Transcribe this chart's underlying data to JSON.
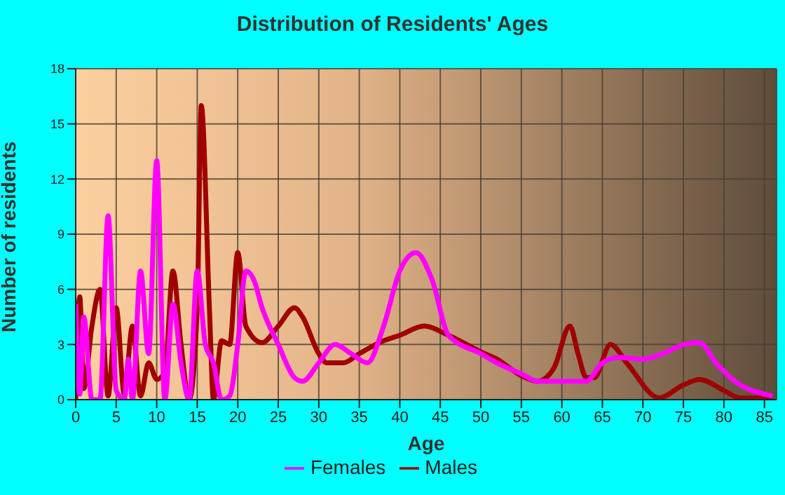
{
  "chart_data": {
    "type": "line",
    "title": "Distribution of Residents' Ages",
    "xlabel": "Age",
    "ylabel": "Number of residents",
    "xlim": [
      0,
      86.5
    ],
    "xticks": [
      0,
      5,
      10,
      15,
      20,
      25,
      30,
      35,
      40,
      45,
      50,
      55,
      60,
      65,
      70,
      75,
      80,
      85
    ],
    "ylim": [
      0,
      18
    ],
    "yticks": [
      0,
      3,
      6,
      9,
      12,
      15,
      18
    ],
    "grid": true,
    "legend": "bottom",
    "marker": "none",
    "line_style": "solid",
    "series": [
      {
        "name": "Males",
        "color": "#a00000",
        "x": [
          0,
          0.5,
          1,
          2,
          3,
          4,
          5,
          6,
          7,
          8,
          9,
          10,
          11,
          12,
          13,
          14,
          15,
          15.5,
          16.5,
          17,
          18,
          19,
          20,
          21,
          23,
          25,
          27,
          28,
          30,
          31,
          33,
          35,
          38,
          40,
          43,
          46,
          50,
          52,
          55,
          57,
          59,
          61,
          62,
          63,
          64,
          66,
          68,
          72,
          75,
          77,
          80,
          82,
          86
        ],
        "values": [
          0,
          5.6,
          0.6,
          4,
          6,
          0.2,
          5,
          0.3,
          4,
          0.2,
          2,
          1.1,
          1.5,
          7,
          3,
          0,
          5,
          16,
          5,
          0,
          3.2,
          3,
          8,
          4,
          3.1,
          4,
          5,
          4.5,
          2.5,
          2,
          2,
          2.5,
          3.2,
          3.5,
          4,
          3.5,
          2.6,
          2.2,
          1.3,
          1,
          1.7,
          4,
          2.5,
          1.2,
          1.2,
          3,
          2,
          0.1,
          0.8,
          1.1,
          0.5,
          0.1,
          0.1
        ]
      },
      {
        "name": "Females",
        "color": "#ff00ff",
        "x": [
          0,
          0.5,
          1,
          2,
          3,
          4,
          5,
          6,
          6.5,
          7,
          8,
          9,
          10,
          11,
          12,
          13,
          14,
          15,
          16,
          17,
          18,
          19,
          20,
          21,
          22,
          23,
          25,
          27,
          28,
          30,
          32,
          34,
          36,
          38,
          40,
          42,
          44,
          46,
          50,
          52,
          55,
          57,
          60,
          63,
          65,
          67,
          70,
          73,
          75,
          77,
          79,
          82,
          85,
          86
        ],
        "values": [
          5.2,
          0.3,
          4.5,
          0,
          0,
          10,
          0.5,
          0,
          2.2,
          0,
          7,
          2.5,
          13,
          0,
          5.2,
          2,
          0,
          7,
          3,
          2,
          0,
          0.2,
          3,
          7,
          6.5,
          5,
          3,
          1.2,
          1,
          2,
          3,
          2.5,
          2,
          4,
          7,
          8,
          6.5,
          3.5,
          2.5,
          2,
          1.4,
          1,
          1,
          1,
          2,
          2.3,
          2.2,
          2.6,
          3,
          3.1,
          2,
          0.8,
          0.3,
          0.2
        ]
      }
    ]
  }
}
